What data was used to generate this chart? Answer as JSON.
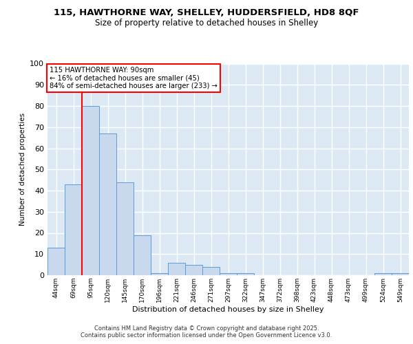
{
  "title_line1": "115, HAWTHORNE WAY, SHELLEY, HUDDERSFIELD, HD8 8QF",
  "title_line2": "Size of property relative to detached houses in Shelley",
  "xlabel": "Distribution of detached houses by size in Shelley",
  "ylabel": "Number of detached properties",
  "categories": [
    "44sqm",
    "69sqm",
    "95sqm",
    "120sqm",
    "145sqm",
    "170sqm",
    "196sqm",
    "221sqm",
    "246sqm",
    "271sqm",
    "297sqm",
    "322sqm",
    "347sqm",
    "372sqm",
    "398sqm",
    "423sqm",
    "448sqm",
    "473sqm",
    "499sqm",
    "524sqm",
    "549sqm"
  ],
  "values": [
    13,
    43,
    80,
    67,
    44,
    19,
    1,
    6,
    5,
    4,
    1,
    1,
    0,
    0,
    0,
    0,
    0,
    0,
    0,
    1,
    1
  ],
  "bar_color": "#c9d9ed",
  "bar_edge_color": "#5b9bd5",
  "vline_x": 1.5,
  "vline_color": "red",
  "annotation_text": "115 HAWTHORNE WAY: 90sqm\n← 16% of detached houses are smaller (45)\n84% of semi-detached houses are larger (233) →",
  "annotation_box_color": "white",
  "annotation_box_edge": "red",
  "ylim": [
    0,
    100
  ],
  "yticks": [
    0,
    10,
    20,
    30,
    40,
    50,
    60,
    70,
    80,
    90,
    100
  ],
  "background_color": "#dce9f5",
  "grid_color": "white",
  "footer": "Contains HM Land Registry data © Crown copyright and database right 2025.\nContains public sector information licensed under the Open Government Licence v3.0."
}
